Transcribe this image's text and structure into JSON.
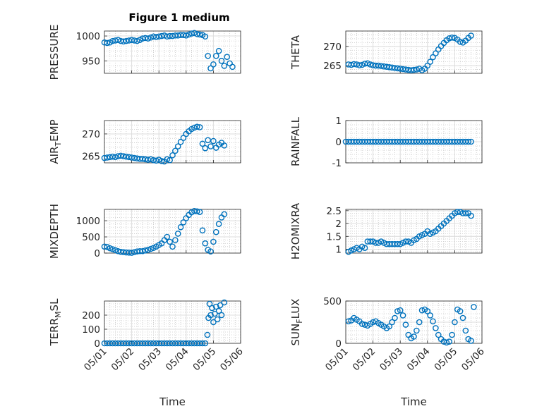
{
  "figure": {
    "title": "Figure 1 medium"
  },
  "colors": {
    "marker": "#0072BD",
    "grid": "#dcdcdc",
    "minor_grid": "#c8c8c8",
    "axis": "#262626"
  },
  "chart_data": [
    {
      "type": "scatter",
      "id": "pressure",
      "ylabel": "PRESSURE",
      "ylim": [
        925,
        1010
      ],
      "yticks": [
        950,
        1000
      ],
      "xlim": [
        0,
        5
      ],
      "xticks": [
        "05/01",
        "05/02",
        "05/03",
        "05/04",
        "05/05",
        "05/06"
      ],
      "xlabel": "",
      "grid": true,
      "x": [
        0.0,
        0.1,
        0.2,
        0.3,
        0.4,
        0.5,
        0.6,
        0.7,
        0.8,
        0.9,
        1.0,
        1.1,
        1.2,
        1.3,
        1.4,
        1.5,
        1.6,
        1.7,
        1.8,
        1.9,
        2.0,
        2.1,
        2.2,
        2.3,
        2.4,
        2.5,
        2.6,
        2.7,
        2.8,
        2.9,
        3.0,
        3.1,
        3.2,
        3.3,
        3.4,
        3.5,
        3.6,
        3.7,
        3.8,
        3.9,
        4.0,
        4.1,
        4.2,
        4.3,
        4.4,
        4.5,
        4.6,
        4.7
      ],
      "y": [
        987,
        986,
        987,
        990,
        991,
        992,
        990,
        989,
        990,
        991,
        992,
        991,
        990,
        992,
        995,
        996,
        995,
        997,
        999,
        998,
        999,
        1000,
        1001,
        999,
        1000,
        1000,
        1001,
        1001,
        1002,
        1002,
        1001,
        1003,
        1005,
        1006,
        1004,
        1003,
        1002,
        999,
        960,
        935,
        943,
        960,
        970,
        950,
        940,
        958,
        945,
        938
      ]
    },
    {
      "type": "scatter",
      "id": "theta",
      "ylabel": "THETA",
      "ylim": [
        263,
        274
      ],
      "yticks": [
        265,
        270
      ],
      "xlim": [
        0,
        5
      ],
      "xticks": [
        "05/01",
        "05/02",
        "05/03",
        "05/04",
        "05/05",
        "05/06"
      ],
      "xlabel": "",
      "grid": true,
      "x": [
        0.1,
        0.2,
        0.3,
        0.4,
        0.5,
        0.6,
        0.7,
        0.8,
        0.9,
        1.0,
        1.1,
        1.2,
        1.3,
        1.4,
        1.5,
        1.6,
        1.7,
        1.8,
        1.9,
        2.0,
        2.1,
        2.2,
        2.3,
        2.4,
        2.5,
        2.6,
        2.7,
        2.8,
        2.9,
        3.0,
        3.1,
        3.2,
        3.3,
        3.4,
        3.5,
        3.6,
        3.7,
        3.8,
        3.9,
        4.0,
        4.1,
        4.2,
        4.3,
        4.4,
        4.5,
        4.6
      ],
      "y": [
        265.3,
        265.2,
        265.4,
        265.3,
        265.1,
        265.2,
        265.5,
        265.6,
        265.3,
        265.1,
        265.0,
        265.0,
        264.9,
        264.8,
        264.7,
        264.6,
        264.5,
        264.4,
        264.3,
        264.2,
        264.1,
        264.0,
        263.9,
        263.8,
        263.9,
        264.0,
        264.2,
        263.8,
        264.2,
        265.0,
        266.0,
        267.2,
        268.2,
        269.2,
        270.1,
        270.9,
        271.6,
        272.1,
        272.3,
        272.2,
        271.8,
        271.2,
        271.0,
        271.5,
        272.2,
        272.8
      ]
    },
    {
      "type": "scatter",
      "id": "air-temp",
      "ylabel": "AIR_TEMP",
      "ylim": [
        263.5,
        273
      ],
      "yticks": [
        265,
        270
      ],
      "xlim": [
        0,
        5
      ],
      "xticks": [
        "05/01",
        "05/02",
        "05/03",
        "05/04",
        "05/05",
        "05/06"
      ],
      "xlabel": "",
      "grid": true,
      "x": [
        0.0,
        0.1,
        0.2,
        0.3,
        0.4,
        0.5,
        0.6,
        0.7,
        0.8,
        0.9,
        1.0,
        1.1,
        1.2,
        1.3,
        1.4,
        1.5,
        1.6,
        1.7,
        1.8,
        1.9,
        2.0,
        2.1,
        2.2,
        2.3,
        2.4,
        2.5,
        2.6,
        2.7,
        2.8,
        2.9,
        3.0,
        3.1,
        3.2,
        3.3,
        3.4,
        3.5,
        3.6,
        3.7,
        3.8,
        3.9,
        4.0,
        4.1,
        4.2,
        4.3,
        4.4
      ],
      "y": [
        264.6,
        264.7,
        264.8,
        264.9,
        264.8,
        265.0,
        265.1,
        265.0,
        264.9,
        264.8,
        264.7,
        264.6,
        264.5,
        264.4,
        264.4,
        264.3,
        264.2,
        264.3,
        264.1,
        264.0,
        264.2,
        263.9,
        263.8,
        264.3,
        264.1,
        265.2,
        266.2,
        267.2,
        268.2,
        269.1,
        270.0,
        270.6,
        271.1,
        271.4,
        271.6,
        271.5,
        267.8,
        266.8,
        268.6,
        267.2,
        268.4,
        266.9,
        267.6,
        268.0,
        267.4
      ]
    },
    {
      "type": "scatter",
      "id": "rainfall",
      "ylabel": "RAINFALL",
      "ylim": [
        -1,
        1
      ],
      "yticks": [
        -1,
        0,
        1
      ],
      "xlim": [
        0,
        5
      ],
      "xticks": [
        "05/01",
        "05/02",
        "05/03",
        "05/04",
        "05/05",
        "05/06"
      ],
      "xlabel": "",
      "grid": true,
      "x": [
        0.0,
        0.1,
        0.2,
        0.3,
        0.4,
        0.5,
        0.6,
        0.7,
        0.8,
        0.9,
        1.0,
        1.1,
        1.2,
        1.3,
        1.4,
        1.5,
        1.6,
        1.7,
        1.8,
        1.9,
        2.0,
        2.1,
        2.2,
        2.3,
        2.4,
        2.5,
        2.6,
        2.7,
        2.8,
        2.9,
        3.0,
        3.1,
        3.2,
        3.3,
        3.4,
        3.5,
        3.6,
        3.7,
        3.8,
        3.9,
        4.0,
        4.1,
        4.2,
        4.3,
        4.4,
        4.5,
        4.6
      ],
      "y": [
        0,
        0,
        0,
        0,
        0,
        0,
        0,
        0,
        0,
        0,
        0,
        0,
        0,
        0,
        0,
        0,
        0,
        0,
        0,
        0,
        0,
        0,
        0,
        0,
        0,
        0,
        0,
        0,
        0,
        0,
        0,
        0,
        0,
        0,
        0,
        0,
        0,
        0,
        0,
        0,
        0,
        0,
        0,
        0,
        0,
        0,
        0
      ]
    },
    {
      "type": "scatter",
      "id": "mixdepth",
      "ylabel": "MIXDEPTH",
      "ylim": [
        0,
        1350
      ],
      "yticks": [
        0,
        500,
        1000
      ],
      "xlim": [
        0,
        5
      ],
      "xticks": [
        "05/01",
        "05/02",
        "05/03",
        "05/04",
        "05/05",
        "05/06"
      ],
      "xlabel": "",
      "grid": true,
      "x": [
        0.0,
        0.1,
        0.2,
        0.3,
        0.4,
        0.5,
        0.6,
        0.7,
        0.8,
        0.9,
        1.0,
        1.1,
        1.2,
        1.3,
        1.4,
        1.5,
        1.6,
        1.7,
        1.8,
        1.9,
        2.0,
        2.1,
        2.2,
        2.3,
        2.4,
        2.5,
        2.6,
        2.7,
        2.8,
        2.9,
        3.0,
        3.1,
        3.2,
        3.3,
        3.4,
        3.5,
        3.6,
        3.7,
        3.8,
        3.9,
        4.0,
        4.1,
        4.2,
        4.3,
        4.4
      ],
      "y": [
        200,
        190,
        150,
        120,
        90,
        60,
        40,
        30,
        20,
        15,
        10,
        30,
        50,
        60,
        60,
        80,
        100,
        130,
        160,
        200,
        250,
        300,
        400,
        500,
        350,
        200,
        400,
        600,
        800,
        950,
        1080,
        1180,
        1260,
        1300,
        1290,
        1270,
        700,
        300,
        100,
        50,
        350,
        650,
        900,
        1100,
        1200
      ]
    },
    {
      "type": "scatter",
      "id": "h2omixra",
      "ylabel": "H2OMIXRA",
      "ylim": [
        0.85,
        2.55
      ],
      "yticks": [
        1,
        1.5,
        2,
        2.5
      ],
      "xlim": [
        0,
        5
      ],
      "xticks": [
        "05/01",
        "05/02",
        "05/03",
        "05/04",
        "05/05",
        "05/06"
      ],
      "xlabel": "",
      "grid": true,
      "x": [
        0.1,
        0.2,
        0.3,
        0.4,
        0.5,
        0.6,
        0.7,
        0.8,
        0.9,
        1.0,
        1.1,
        1.2,
        1.3,
        1.4,
        1.5,
        1.6,
        1.7,
        1.8,
        1.9,
        2.0,
        2.1,
        2.2,
        2.3,
        2.4,
        2.5,
        2.6,
        2.7,
        2.8,
        2.9,
        3.0,
        3.1,
        3.2,
        3.3,
        3.4,
        3.5,
        3.6,
        3.7,
        3.8,
        3.9,
        4.0,
        4.1,
        4.2,
        4.3,
        4.4,
        4.5,
        4.6
      ],
      "y": [
        0.9,
        0.95,
        1.0,
        1.05,
        1.0,
        1.1,
        1.05,
        1.3,
        1.3,
        1.3,
        1.25,
        1.25,
        1.3,
        1.25,
        1.2,
        1.2,
        1.2,
        1.2,
        1.2,
        1.2,
        1.25,
        1.3,
        1.3,
        1.25,
        1.35,
        1.4,
        1.5,
        1.55,
        1.6,
        1.7,
        1.6,
        1.65,
        1.7,
        1.8,
        1.9,
        2.0,
        2.1,
        2.2,
        2.3,
        2.4,
        2.45,
        2.45,
        2.4,
        2.4,
        2.4,
        2.3
      ]
    },
    {
      "type": "scatter",
      "id": "terr-msl",
      "ylabel": "TERR_MSL",
      "ylim": [
        0,
        300
      ],
      "yticks": [
        0,
        100,
        200
      ],
      "xlim": [
        0,
        5
      ],
      "xticks": [
        "05/01",
        "05/02",
        "05/03",
        "05/04",
        "05/05",
        "05/06"
      ],
      "xlabel": "Time",
      "grid": true,
      "x": [
        0.0,
        0.1,
        0.2,
        0.3,
        0.4,
        0.5,
        0.6,
        0.7,
        0.8,
        0.9,
        1.0,
        1.1,
        1.2,
        1.3,
        1.4,
        1.5,
        1.6,
        1.7,
        1.8,
        1.9,
        2.0,
        2.1,
        2.2,
        2.3,
        2.4,
        2.5,
        2.6,
        2.7,
        2.8,
        2.9,
        3.0,
        3.1,
        3.2,
        3.3,
        3.4,
        3.5,
        3.6,
        3.7,
        3.78,
        3.82,
        3.86,
        3.9,
        3.95,
        4.0,
        4.05,
        4.1,
        4.15,
        4.2,
        4.25,
        4.3,
        4.4
      ],
      "y": [
        0,
        0,
        0,
        0,
        0,
        0,
        0,
        0,
        0,
        0,
        0,
        0,
        0,
        0,
        0,
        0,
        0,
        0,
        0,
        0,
        0,
        0,
        0,
        0,
        0,
        0,
        0,
        0,
        0,
        0,
        0,
        0,
        0,
        0,
        0,
        0,
        0,
        0,
        60,
        180,
        280,
        200,
        250,
        150,
        210,
        260,
        170,
        230,
        270,
        200,
        290
      ]
    },
    {
      "type": "scatter",
      "id": "sun-flux",
      "ylabel": "SUN_FLUX",
      "ylim": [
        0,
        500
      ],
      "yticks": [
        0,
        250,
        500
      ],
      "ytick_labels": [
        "0",
        "",
        "500"
      ],
      "xlim": [
        0,
        5
      ],
      "xticks": [
        "05/01",
        "05/02",
        "05/03",
        "05/04",
        "05/05",
        "05/06"
      ],
      "xlabel": "Time",
      "grid": true,
      "x": [
        0.1,
        0.2,
        0.3,
        0.4,
        0.5,
        0.6,
        0.7,
        0.8,
        0.9,
        1.0,
        1.1,
        1.2,
        1.3,
        1.4,
        1.5,
        1.6,
        1.7,
        1.8,
        1.9,
        2.0,
        2.1,
        2.2,
        2.3,
        2.4,
        2.5,
        2.6,
        2.7,
        2.8,
        2.9,
        3.0,
        3.1,
        3.2,
        3.3,
        3.4,
        3.5,
        3.6,
        3.7,
        3.8,
        3.9,
        4.0,
        4.1,
        4.2,
        4.3,
        4.4,
        4.5,
        4.6,
        4.7
      ],
      "y": [
        260,
        270,
        300,
        280,
        260,
        230,
        220,
        210,
        230,
        250,
        260,
        240,
        220,
        200,
        180,
        200,
        250,
        300,
        380,
        390,
        330,
        220,
        100,
        60,
        80,
        150,
        250,
        390,
        400,
        380,
        330,
        260,
        180,
        100,
        50,
        20,
        10,
        20,
        100,
        250,
        400,
        380,
        300,
        150,
        50,
        30,
        430
      ]
    }
  ]
}
